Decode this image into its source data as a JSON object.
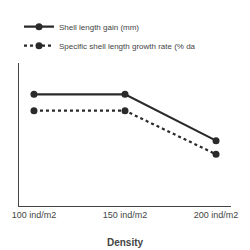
{
  "chart_data": {
    "type": "line",
    "xlabel": "Density",
    "categories": [
      "100 ind/m2",
      "150 ind/m2",
      "200 ind/m2"
    ],
    "series": [
      {
        "name": "Shell length gain (mm)",
        "color": "#2a2a2a",
        "values": [
          0.82,
          0.82,
          0.48
        ],
        "marker": "circle",
        "line_style": "solid"
      },
      {
        "name": "Specific shell length growth rate (% da",
        "color": "#2a2a2a",
        "values": [
          0.7,
          0.7,
          0.38
        ],
        "marker": "circle",
        "line_style": "dotted"
      }
    ],
    "ylim": [
      0.0,
      1.05
    ],
    "tick_labels": "x",
    "legend": "upper left",
    "grid": false
  }
}
